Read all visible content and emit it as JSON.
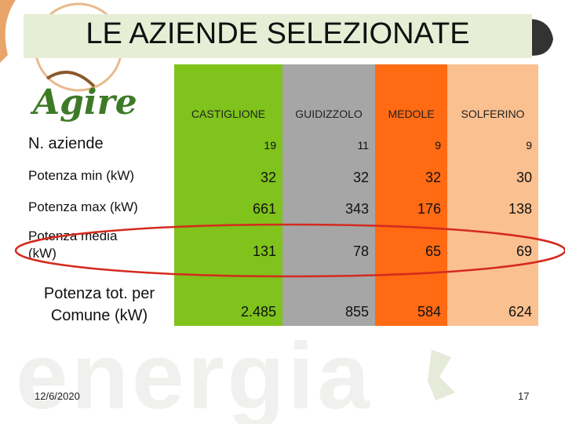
{
  "title": "LE AZIENDE SELEZIONATE",
  "logo": {
    "text": "Agire"
  },
  "background_text": "energia",
  "table": {
    "columns": [
      "CASTIGLIONE",
      "GUIDIZZOLO",
      "MEDOLE",
      "SOLFERINO"
    ],
    "rows": [
      {
        "label": "N. aziende",
        "values": [
          "19",
          "11",
          "9",
          "9"
        ]
      },
      {
        "label": "Potenza min (kW)",
        "values": [
          "32",
          "32",
          "32",
          "30"
        ]
      },
      {
        "label": "Potenza max (kW)",
        "values": [
          "661",
          "343",
          "176",
          "138"
        ]
      },
      {
        "label": "Potenza media (kW)",
        "values": [
          "131",
          "78",
          "65",
          "69"
        ]
      },
      {
        "label": "Potenza tot. per Comune (kW)",
        "values": [
          "2.485",
          "855",
          "584",
          "624"
        ]
      }
    ]
  },
  "footer": {
    "date": "12/6/2020",
    "page": "17"
  }
}
